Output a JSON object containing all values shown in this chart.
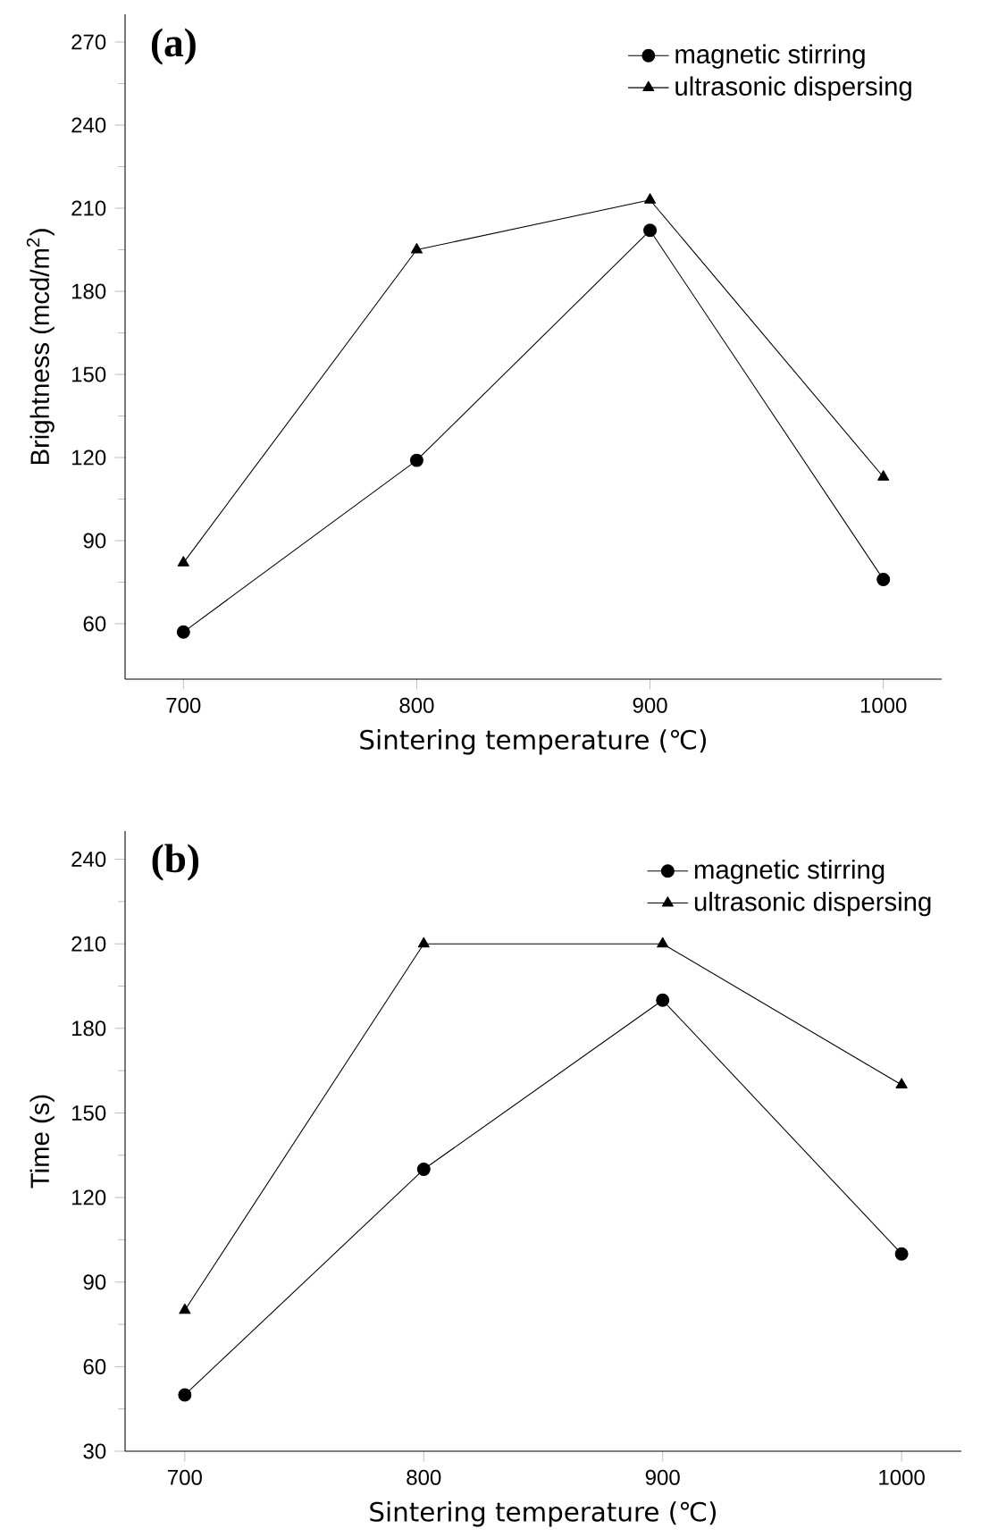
{
  "chart_data": [
    {
      "type": "line",
      "title": "(a)",
      "x": [
        700,
        800,
        900,
        1000
      ],
      "xlabel": "Sintering temperature (℃)",
      "ylabel": "Brightness (mcd/m$^{2}$)",
      "xlim": [
        675,
        1025
      ],
      "xticks": [
        700,
        800,
        900,
        1000
      ],
      "ylim": [
        40,
        280
      ],
      "yticks": [
        60,
        90,
        120,
        150,
        180,
        210,
        240,
        270
      ],
      "legend": "top right",
      "grid": false,
      "series": [
        {
          "name": "magnetic stirring",
          "color": "#000000",
          "marker": "circle",
          "values": [
            57,
            119,
            202,
            76
          ]
        },
        {
          "name": "ultrasonic dispersing",
          "color": "#000000",
          "marker": "triangle",
          "values": [
            82,
            195,
            213,
            113
          ]
        }
      ]
    },
    {
      "type": "line",
      "title": "(b)",
      "x": [
        700,
        800,
        900,
        1000
      ],
      "xlabel": "Sintering temperature (℃)",
      "ylabel": "Time (s)",
      "xlim": [
        675,
        1025
      ],
      "xticks": [
        700,
        800,
        900,
        1000
      ],
      "ylim": [
        30,
        250
      ],
      "yticks": [
        30,
        60,
        90,
        120,
        150,
        180,
        210,
        240
      ],
      "legend": "top right",
      "grid": false,
      "series": [
        {
          "name": "magnetic stirring",
          "color": "#000000",
          "marker": "circle",
          "values": [
            50,
            130,
            190,
            100
          ]
        },
        {
          "name": "ultrasonic dispersing",
          "color": "#000000",
          "marker": "triangle",
          "values": [
            80,
            210,
            210,
            160
          ]
        }
      ]
    }
  ]
}
